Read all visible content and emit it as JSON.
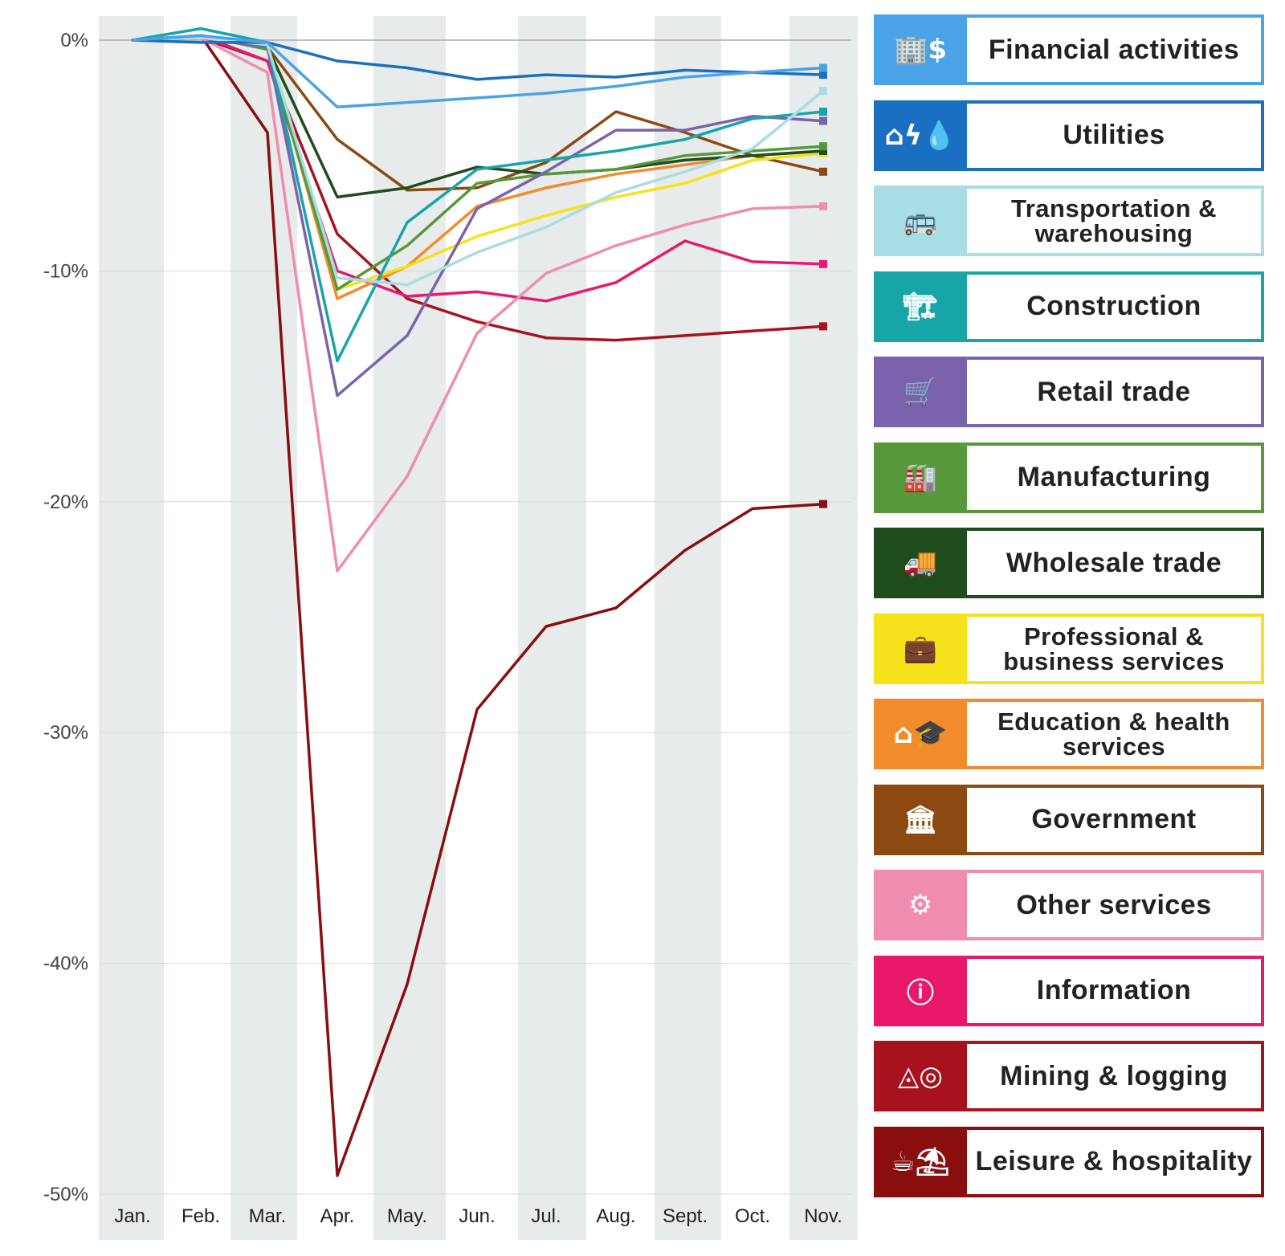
{
  "chart_data": {
    "type": "line",
    "categories": [
      "Jan.",
      "Feb.",
      "Mar.",
      "Apr.",
      "May.",
      "Jun.",
      "Jul.",
      "Aug.",
      "Sept.",
      "Oct.",
      "Nov."
    ],
    "y_ticks": [
      "0%",
      "-10%",
      "-20%",
      "-30%",
      "-40%",
      "-50%"
    ],
    "ylim": [
      -50,
      0
    ],
    "grid": "horizontal",
    "legend_position": "right",
    "series": [
      {
        "name": "Financial activities",
        "color": "#4aa3e6",
        "icon": "building-dollar-icon",
        "values": [
          0,
          0.2,
          -0.1,
          -2.9,
          -2.7,
          -2.5,
          -2.3,
          -2.0,
          -1.6,
          -1.4,
          -1.2
        ]
      },
      {
        "name": "Utilities",
        "color": "#1a6fc0",
        "icon": "house-utilities-icon",
        "values": [
          0,
          -0.1,
          -0.1,
          -0.9,
          -1.2,
          -1.7,
          -1.5,
          -1.6,
          -1.3,
          -1.4,
          -1.5
        ]
      },
      {
        "name": "Transportation & warehousing",
        "color": "#a8dde3",
        "icon": "bus-car-icon",
        "values": [
          0,
          0.1,
          -0.2,
          -10.3,
          -10.6,
          -9.2,
          -8.1,
          -6.6,
          -5.7,
          -4.7,
          -2.2
        ]
      },
      {
        "name": "Construction",
        "color": "#17a5a8",
        "icon": "crane-building-icon",
        "values": [
          0,
          0.5,
          -0.1,
          -13.9,
          -7.9,
          -5.6,
          -5.2,
          -4.8,
          -4.3,
          -3.4,
          -3.1
        ]
      },
      {
        "name": "Retail trade",
        "color": "#7a63ac",
        "icon": "shopping-cart-icon",
        "values": [
          0,
          0.1,
          -0.3,
          -15.4,
          -12.8,
          -7.3,
          -5.7,
          -3.9,
          -3.9,
          -3.3,
          -3.5
        ]
      },
      {
        "name": "Manufacturing",
        "color": "#56983a",
        "icon": "factory-icon",
        "values": [
          0,
          0.2,
          -0.4,
          -10.8,
          -8.9,
          -6.2,
          -5.8,
          -5.6,
          -5.0,
          -4.8,
          -4.6
        ]
      },
      {
        "name": "Wholesale trade",
        "color": "#1f4c1c",
        "icon": "delivery-truck-icon",
        "values": [
          0,
          0.1,
          -0.3,
          -6.8,
          -6.4,
          -5.5,
          -5.8,
          -5.6,
          -5.2,
          -5.0,
          -4.8
        ]
      },
      {
        "name": "Professional & business services",
        "color": "#f6e21a",
        "icon": "briefcase-hand-icon",
        "values": [
          0,
          0.2,
          -0.3,
          -10.8,
          -9.8,
          -8.5,
          -7.6,
          -6.8,
          -6.2,
          -5.2,
          -4.9
        ]
      },
      {
        "name": "Education & health services",
        "color": "#f28b2c",
        "icon": "school-hospital-icon",
        "values": [
          0,
          0.1,
          -0.2,
          -11.2,
          -9.8,
          -7.2,
          -6.4,
          -5.8,
          -5.4,
          -5.0,
          -4.8
        ]
      },
      {
        "name": "Government",
        "color": "#8c4a12",
        "icon": "capitol-building-icon",
        "values": [
          0,
          0.1,
          -0.3,
          -4.3,
          -6.5,
          -6.4,
          -5.3,
          -3.1,
          -4.0,
          -5.0,
          -5.7
        ]
      },
      {
        "name": "Other services",
        "color": "#f08cb0",
        "icon": "gears-hand-icon",
        "values": [
          0,
          0.1,
          -1.4,
          -23.0,
          -18.9,
          -12.7,
          -10.1,
          -8.9,
          -8.0,
          -7.3,
          -7.2
        ]
      },
      {
        "name": "Information",
        "color": "#e8186a",
        "icon": "information-icon",
        "values": [
          0,
          0.2,
          -0.9,
          -10.0,
          -11.1,
          -10.9,
          -11.3,
          -10.5,
          -8.7,
          -9.6,
          -9.7
        ]
      },
      {
        "name": "Mining & logging",
        "color": "#a8121e",
        "icon": "rocks-logs-icon",
        "values": [
          0,
          0.1,
          -0.9,
          -8.4,
          -11.2,
          -12.2,
          -12.9,
          -13.0,
          -12.8,
          -12.6,
          -12.4
        ]
      },
      {
        "name": "Leisure & hospitality",
        "color": "#8b0e0e",
        "icon": "coffee-beach-icon",
        "values": [
          0,
          0.2,
          -4.0,
          -49.2,
          -40.9,
          -29.0,
          -25.4,
          -24.6,
          -22.1,
          -20.3,
          -20.1
        ]
      }
    ]
  }
}
